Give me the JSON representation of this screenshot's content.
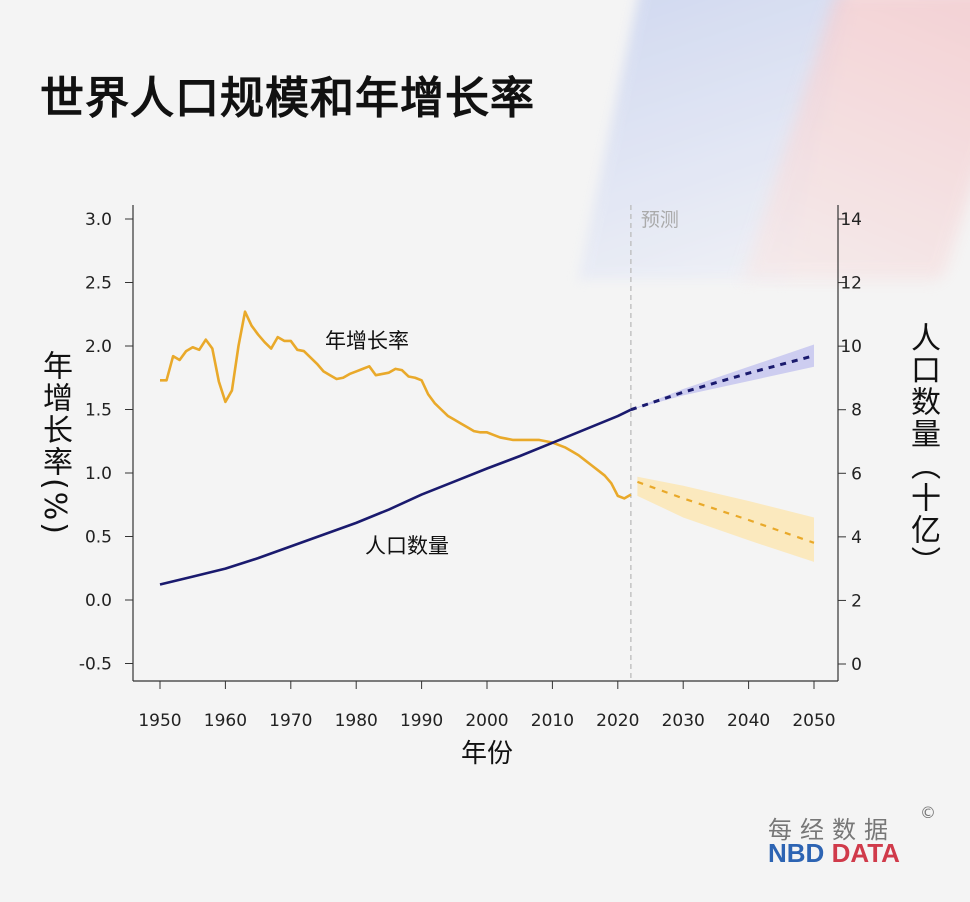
{
  "title": "世界人口规模和年增长率",
  "logo": {
    "cn": "每经数据",
    "copyright": "©",
    "en_left": "NBD",
    "en_right": "DATA"
  },
  "chart_data": {
    "type": "line",
    "title": "世界人口规模和年增长率",
    "xlabel": "年份",
    "ylabel_left": "年增长率(%)",
    "ylabel_right": "人口数量（十亿）",
    "xlim": [
      1950,
      2050
    ],
    "ylim_left": [
      -0.5,
      3.0
    ],
    "ylim_right": [
      0,
      14
    ],
    "x_ticks": [
      1950,
      1960,
      1970,
      1980,
      1990,
      2000,
      2010,
      2020,
      2030,
      2040,
      2050
    ],
    "y_left_ticks": [
      "3.0",
      "2.5",
      "2.0",
      "1.5",
      "1.0",
      "0.5",
      "0.0",
      "-0.5"
    ],
    "y_right_ticks": [
      "14",
      "12",
      "10",
      "8",
      "6",
      "4",
      "2",
      "0"
    ],
    "grid": false,
    "forecast_start": 2022,
    "forecast_label": "预测",
    "colors": {
      "growth": "#e9a92a",
      "growth_band": "#fbe6b4",
      "population": "#1a1a6e",
      "population_band": "#c5c5ee",
      "forecast_line": "#bbbbbb"
    },
    "series": [
      {
        "name": "年增长率",
        "axis": "left",
        "x": [
          1950,
          1951,
          1952,
          1953,
          1954,
          1955,
          1956,
          1957,
          1958,
          1959,
          1960,
          1961,
          1962,
          1963,
          1964,
          1965,
          1966,
          1967,
          1968,
          1969,
          1970,
          1971,
          1972,
          1973,
          1974,
          1975,
          1976,
          1977,
          1978,
          1979,
          1980,
          1981,
          1982,
          1983,
          1984,
          1985,
          1986,
          1987,
          1988,
          1989,
          1990,
          1991,
          1992,
          1993,
          1994,
          1995,
          1996,
          1997,
          1998,
          1999,
          2000,
          2001,
          2002,
          2003,
          2004,
          2005,
          2006,
          2007,
          2008,
          2009,
          2010,
          2011,
          2012,
          2013,
          2014,
          2015,
          2016,
          2017,
          2018,
          2019,
          2020,
          2021,
          2022
        ],
        "y": [
          1.73,
          1.73,
          1.92,
          1.89,
          1.96,
          1.99,
          1.97,
          2.05,
          1.98,
          1.72,
          1.56,
          1.65,
          2.0,
          2.27,
          2.16,
          2.09,
          2.03,
          1.98,
          2.07,
          2.04,
          2.04,
          1.97,
          1.96,
          1.91,
          1.86,
          1.8,
          1.77,
          1.74,
          1.75,
          1.78,
          1.8,
          1.82,
          1.84,
          1.77,
          1.78,
          1.79,
          1.82,
          1.81,
          1.76,
          1.75,
          1.73,
          1.62,
          1.55,
          1.5,
          1.45,
          1.42,
          1.39,
          1.36,
          1.33,
          1.32,
          1.32,
          1.3,
          1.28,
          1.27,
          1.26,
          1.26,
          1.26,
          1.26,
          1.26,
          1.25,
          1.24,
          1.22,
          1.2,
          1.17,
          1.14,
          1.1,
          1.06,
          1.02,
          0.98,
          0.92,
          0.82,
          0.8,
          0.83
        ],
        "forecast": {
          "x": [
            2023,
            2030,
            2040,
            2050
          ],
          "y": [
            0.93,
            0.8,
            0.63,
            0.45
          ],
          "lower": [
            0.82,
            0.65,
            0.47,
            0.3
          ],
          "upper": [
            0.97,
            0.9,
            0.78,
            0.65
          ]
        }
      },
      {
        "name": "人口数量",
        "axis": "right",
        "x": [
          1950,
          1955,
          1960,
          1965,
          1970,
          1975,
          1980,
          1985,
          1990,
          1995,
          2000,
          2005,
          2010,
          2015,
          2020,
          2022
        ],
        "y": [
          2.5,
          2.75,
          3.0,
          3.33,
          3.7,
          4.07,
          4.44,
          4.86,
          5.33,
          5.74,
          6.15,
          6.54,
          6.96,
          7.38,
          7.8,
          8.0
        ],
        "forecast": {
          "x": [
            2022,
            2030,
            2040,
            2050
          ],
          "y": [
            8.0,
            8.55,
            9.15,
            9.7
          ],
          "lower": [
            8.0,
            8.45,
            8.9,
            9.35
          ],
          "upper": [
            8.0,
            8.65,
            9.35,
            10.05
          ]
        }
      }
    ]
  }
}
